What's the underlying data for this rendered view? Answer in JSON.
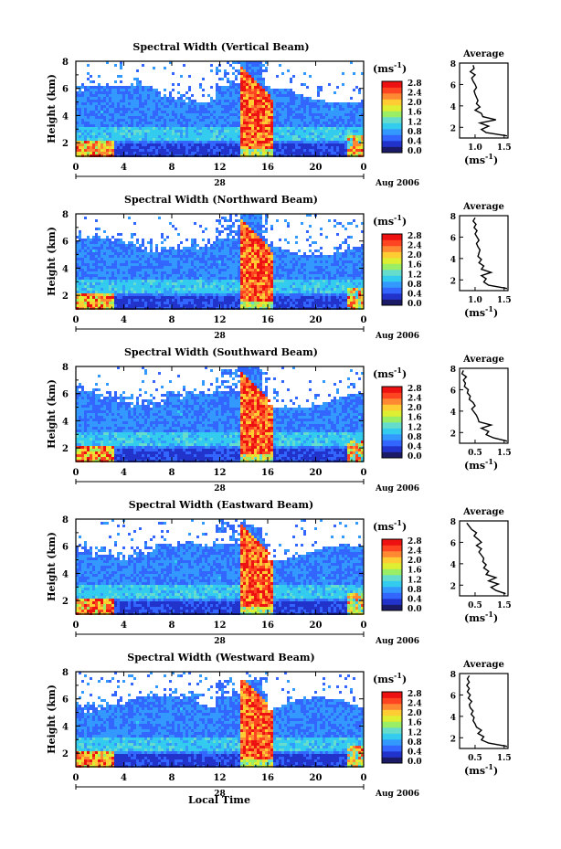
{
  "figure": {
    "xlabel": "Local Time",
    "date_day": "28",
    "date_label": "Aug 2006",
    "ylabel": "Height (km)",
    "cbar_unit": "(ms",
    "cbar_unit_sup": "-1",
    "cbar_unit_close": ")",
    "avg_title": "Average",
    "avg_unit": "(ms",
    "avg_unit_sup": "-1",
    "avg_unit_close": ")"
  },
  "colorbar": {
    "ticks": [
      "0.0",
      "0.4",
      "0.8",
      "1.2",
      "1.6",
      "2.0",
      "2.4",
      "2.8"
    ],
    "colors": [
      "#1a1a66",
      "#2233cc",
      "#3366ff",
      "#3399ff",
      "#33ccee",
      "#66ddcc",
      "#99ee66",
      "#ddee33",
      "#ffcc33",
      "#ff8833",
      "#ff4422",
      "#ee1111"
    ]
  },
  "chart_data": [
    {
      "type": "heatmap",
      "title": "Spectral Width (Vertical Beam)",
      "xlabel": "Local Time",
      "ylabel": "Height (km)",
      "xlim": [
        0,
        24
      ],
      "xticks": [
        "0",
        "4",
        "8",
        "12",
        "16",
        "20",
        "0"
      ],
      "ylim": [
        1,
        8
      ],
      "yticks": [
        "2",
        "4",
        "6",
        "8"
      ],
      "colorbar_label": "(ms-1)",
      "colorbar_range": [
        0,
        2.8
      ],
      "avg_profile": {
        "xlim": [
          0.5,
          1.5
        ],
        "xticks": [
          "1.0",
          "1.5"
        ],
        "ylim": [
          1,
          8
        ],
        "yticks": [
          "2",
          "4",
          "6",
          "8"
        ],
        "height": [
          1.2,
          1.5,
          1.8,
          2.1,
          2.4,
          2.7,
          3.0,
          3.3,
          3.6,
          3.9,
          4.2,
          4.5,
          4.8,
          5.1,
          5.4,
          5.7,
          6.0,
          6.3,
          6.6,
          6.9,
          7.2,
          7.5,
          7.8
        ],
        "value": [
          1.55,
          1.05,
          0.95,
          1.1,
          0.92,
          1.25,
          0.98,
          0.95,
          0.82,
          0.92,
          0.85,
          0.88,
          0.85,
          0.82,
          0.8,
          0.85,
          0.82,
          0.78,
          0.75,
          0.82,
          0.72,
          0.8,
          0.78
        ]
      }
    },
    {
      "type": "heatmap",
      "title": "Spectral Width (Northward Beam)",
      "xlabel": "Local Time",
      "ylabel": "Height (km)",
      "xlim": [
        0,
        24
      ],
      "xticks": [
        "0",
        "4",
        "8",
        "12",
        "16",
        "20",
        "0"
      ],
      "ylim": [
        1,
        8
      ],
      "yticks": [
        "2",
        "4",
        "6",
        "8"
      ],
      "colorbar_label": "(ms-1)",
      "colorbar_range": [
        0,
        2.8
      ],
      "avg_profile": {
        "xlim": [
          0.5,
          1.5
        ],
        "xticks": [
          "1.0",
          "1.5"
        ],
        "ylim": [
          1,
          8
        ],
        "yticks": [
          "2",
          "4",
          "6",
          "8"
        ],
        "height": [
          1.2,
          1.5,
          1.8,
          2.1,
          2.4,
          2.7,
          3.0,
          3.3,
          3.6,
          3.9,
          4.2,
          4.5,
          4.8,
          5.1,
          5.4,
          5.7,
          6.0,
          6.3,
          6.6,
          6.9,
          7.2,
          7.5,
          7.8
        ],
        "value": [
          1.5,
          1.1,
          1.0,
          1.05,
          0.95,
          1.15,
          0.95,
          1.0,
          0.9,
          0.95,
          0.88,
          0.9,
          0.92,
          0.88,
          0.85,
          0.9,
          0.86,
          0.82,
          0.86,
          0.8,
          0.84,
          0.78,
          0.82
        ]
      }
    },
    {
      "type": "heatmap",
      "title": "Spectral Width (Southward Beam)",
      "xlabel": "Local Time",
      "ylabel": "Height (km)",
      "xlim": [
        0,
        24
      ],
      "xticks": [
        "0",
        "4",
        "8",
        "12",
        "16",
        "20",
        "0"
      ],
      "ylim": [
        1,
        8
      ],
      "yticks": [
        "2",
        "4",
        "6",
        "8"
      ],
      "colorbar_label": "(ms-1)",
      "colorbar_range": [
        0,
        2.8
      ],
      "avg_profile": {
        "xlim": [
          0.5,
          1.5
        ],
        "xticks": [
          "0.5",
          "1.5"
        ],
        "ylim": [
          1,
          8
        ],
        "yticks": [
          "2",
          "4",
          "6",
          "8"
        ],
        "height": [
          1.2,
          1.5,
          1.8,
          2.1,
          2.4,
          2.7,
          3.0,
          3.3,
          3.6,
          3.9,
          4.2,
          4.5,
          4.8,
          5.1,
          5.4,
          5.7,
          6.0,
          6.3,
          6.6,
          6.9,
          7.2,
          7.5,
          7.8
        ],
        "value": [
          1.5,
          1.2,
          1.05,
          1.1,
          0.95,
          1.15,
          0.9,
          0.88,
          0.85,
          0.8,
          0.75,
          0.82,
          0.78,
          0.7,
          0.72,
          0.66,
          0.68,
          0.6,
          0.62,
          0.58,
          0.64,
          0.55,
          0.58
        ]
      }
    },
    {
      "type": "heatmap",
      "title": "Spectral Width (Eastward Beam)",
      "xlabel": "Local Time",
      "ylabel": "Height (km)",
      "xlim": [
        0,
        24
      ],
      "xticks": [
        "0",
        "4",
        "8",
        "12",
        "16",
        "20",
        "0"
      ],
      "ylim": [
        1,
        8
      ],
      "yticks": [
        "2",
        "4",
        "6",
        "8"
      ],
      "colorbar_label": "(ms-1)",
      "colorbar_range": [
        0,
        2.8
      ],
      "avg_profile": {
        "xlim": [
          0.5,
          1.5
        ],
        "xticks": [
          "0.5",
          "1.5"
        ],
        "ylim": [
          1,
          8
        ],
        "yticks": [
          "2",
          "4",
          "6",
          "8"
        ],
        "height": [
          1.2,
          1.5,
          1.8,
          2.1,
          2.4,
          2.7,
          3.0,
          3.3,
          3.6,
          3.9,
          4.2,
          4.5,
          4.8,
          5.1,
          5.4,
          5.7,
          6.0,
          6.3,
          6.6,
          6.9,
          7.2,
          7.5,
          7.8
        ],
        "value": [
          1.45,
          1.25,
          1.15,
          1.3,
          1.1,
          1.25,
          1.05,
          1.1,
          1.0,
          1.05,
          0.98,
          1.0,
          0.95,
          0.9,
          0.95,
          0.85,
          0.95,
          0.88,
          0.8,
          0.85,
          0.75,
          0.7,
          0.65
        ]
      }
    },
    {
      "type": "heatmap",
      "title": "Spectral Width (Westward Beam)",
      "xlabel": "Local Time",
      "ylabel": "Height (km)",
      "xlim": [
        0,
        24
      ],
      "xticks": [
        "0",
        "4",
        "8",
        "12",
        "16",
        "20",
        "0"
      ],
      "ylim": [
        1,
        8
      ],
      "yticks": [
        "2",
        "4",
        "6",
        "8"
      ],
      "colorbar_label": "(ms-1)",
      "colorbar_range": [
        0,
        2.8
      ],
      "avg_profile": {
        "xlim": [
          0.5,
          1.5
        ],
        "xticks": [
          "0.5",
          "1.5"
        ],
        "ylim": [
          1,
          8
        ],
        "yticks": [
          "2",
          "4",
          "6",
          "8"
        ],
        "height": [
          1.2,
          1.5,
          1.8,
          2.1,
          2.4,
          2.7,
          3.0,
          3.3,
          3.6,
          3.9,
          4.2,
          4.5,
          4.8,
          5.1,
          5.4,
          5.7,
          6.0,
          6.3,
          6.6,
          6.9,
          7.2,
          7.5,
          7.8
        ],
        "value": [
          1.5,
          1.1,
          0.95,
          1.0,
          0.88,
          0.95,
          0.85,
          0.82,
          0.78,
          0.8,
          0.74,
          0.78,
          0.72,
          0.7,
          0.75,
          0.68,
          0.72,
          0.66,
          0.7,
          0.65,
          0.7,
          0.66,
          0.7
        ]
      }
    }
  ]
}
